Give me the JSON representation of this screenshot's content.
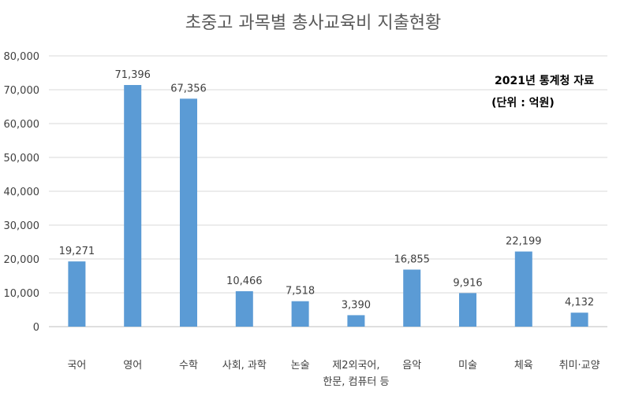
{
  "chart_data": {
    "type": "bar",
    "title": "초중고 과목별 총사교육비 지출현황",
    "note_line1": "2021년 통계청 자료",
    "note_line2": "(단위 : 억원)",
    "categories": [
      [
        "국어"
      ],
      [
        "영어"
      ],
      [
        "수학"
      ],
      [
        "사회, 과학"
      ],
      [
        "논술"
      ],
      [
        "제2외국어,",
        "한문, 컴퓨터 등"
      ],
      [
        "음악"
      ],
      [
        "미술"
      ],
      [
        "체육"
      ],
      [
        "취미·교양"
      ]
    ],
    "values": [
      19271,
      71396,
      67356,
      10466,
      7518,
      3390,
      16855,
      9916,
      22199,
      4132
    ],
    "value_labels": [
      "19,271",
      "71,396",
      "67,356",
      "10,466",
      "7,518",
      "3,390",
      "16,855",
      "9,916",
      "22,199",
      "4,132"
    ],
    "ylim": [
      0,
      80000
    ],
    "yticks": [
      0,
      10000,
      20000,
      30000,
      40000,
      50000,
      60000,
      70000,
      80000
    ],
    "ytick_labels": [
      "0",
      "10,000",
      "20,000",
      "30,000",
      "40,000",
      "50,000",
      "60,000",
      "70,000",
      "80,000"
    ],
    "grid": true,
    "legend": "none",
    "bar_color": "#5b9bd5"
  }
}
